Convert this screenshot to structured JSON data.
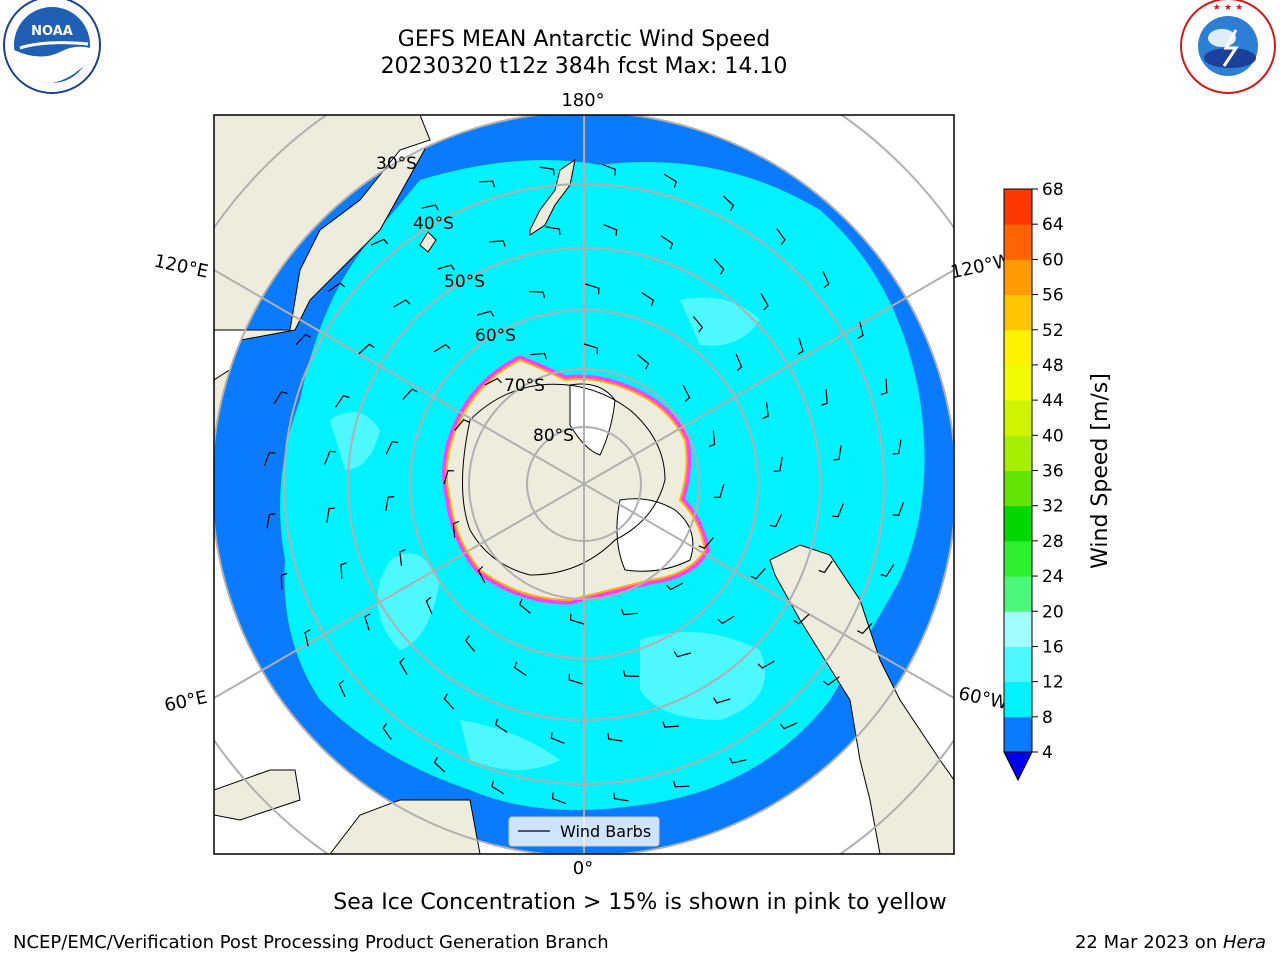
{
  "title_line1": "GEFS MEAN Antarctic Wind Speed",
  "title_line2": "20230320 t12z 384h fcst   Max: 14.10",
  "logos": {
    "noaa_text": "NOAA",
    "noaa_ring": "NATIONAL OCEANIC AND ATMOSPHERIC ADMINISTRATION · U.S. DEPARTMENT OF COMMERCE",
    "nws_ring": "NATIONAL WEATHER SERVICE"
  },
  "map": {
    "projection": "south-polar-stereographic",
    "longitude_labels": {
      "top": "180°",
      "bottom": "0°",
      "upper_left": "120°E",
      "upper_right": "120°W",
      "lower_left": "60°E",
      "lower_right": "60°W"
    },
    "latitude_labels": [
      "30°S",
      "40°S",
      "50°S",
      "60°S",
      "70°S",
      "80°S"
    ],
    "legend_label": "Wind Barbs",
    "colors": {
      "land": "#eeecdc",
      "ocean_4_8": "#0a7afe",
      "ocean_8_12": "#00f2fe",
      "ocean_12_16": "#4df8fe",
      "grid": "#b0b0b0",
      "sea_ice": "#ff40ff"
    }
  },
  "colorbar": {
    "label": "Wind Speed [m/s]",
    "ticks": [
      "4",
      "8",
      "12",
      "16",
      "20",
      "24",
      "28",
      "32",
      "36",
      "40",
      "44",
      "48",
      "52",
      "56",
      "60",
      "64",
      "68"
    ],
    "colors": [
      "#0a7afe",
      "#00f2fe",
      "#4df8fe",
      "#a0fcfe",
      "#4cf87a",
      "#2ef02e",
      "#00d800",
      "#62e400",
      "#a8ee00",
      "#d0f400",
      "#f0fa00",
      "#fff200",
      "#ffc400",
      "#ff9a00",
      "#ff6400",
      "#ff3800",
      "#ff0000"
    ],
    "underflow_color": "#0000f0"
  },
  "caption": "Sea Ice Concentration > 15% is shown in pink to yellow",
  "footer_left": "NCEP/EMC/Verification Post Processing Product Generation Branch",
  "footer_right_date": "22 Mar 2023 on ",
  "footer_right_host": "Hera"
}
